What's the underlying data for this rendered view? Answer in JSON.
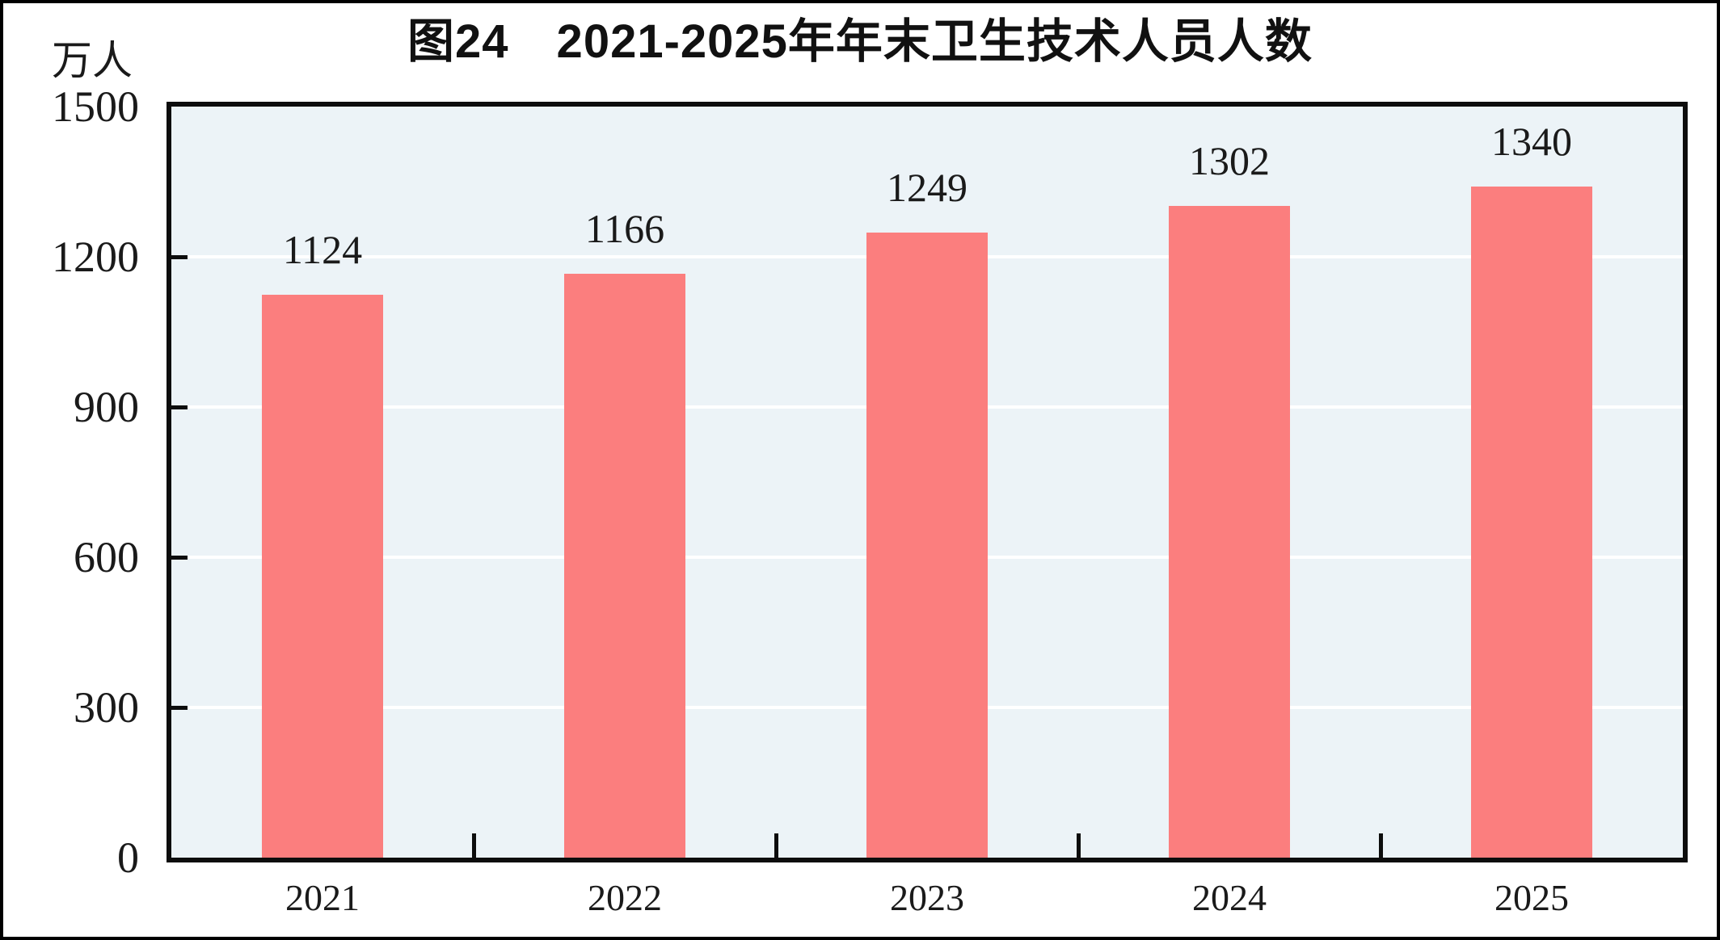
{
  "chart_data": {
    "type": "bar",
    "title": "图24　2021-2025年年末卫生技术人员人数",
    "unit_label": "万人",
    "categories": [
      "2021",
      "2022",
      "2023",
      "2024",
      "2025"
    ],
    "values": [
      1124,
      1166,
      1249,
      1302,
      1340
    ],
    "series": [
      {
        "name": "年末卫生技术人员人数",
        "values": [
          1124,
          1166,
          1249,
          1302,
          1340
        ]
      }
    ],
    "xlabel": "",
    "ylabel": "万人",
    "ylim": [
      0,
      1500
    ],
    "yticks": [
      0,
      300,
      600,
      900,
      1200,
      1500
    ],
    "grid": "horizontal",
    "legend_position": "none",
    "data_labels_shown": true,
    "colors": {
      "bar": "#FB7E7E",
      "plot_background": "#ECF3F7",
      "gridline": "#FFFFFF",
      "axis_frame": "#0D0D0D",
      "text": "#1A1A1A",
      "page_background": "#FFFFFF",
      "page_border": "#000000"
    }
  }
}
